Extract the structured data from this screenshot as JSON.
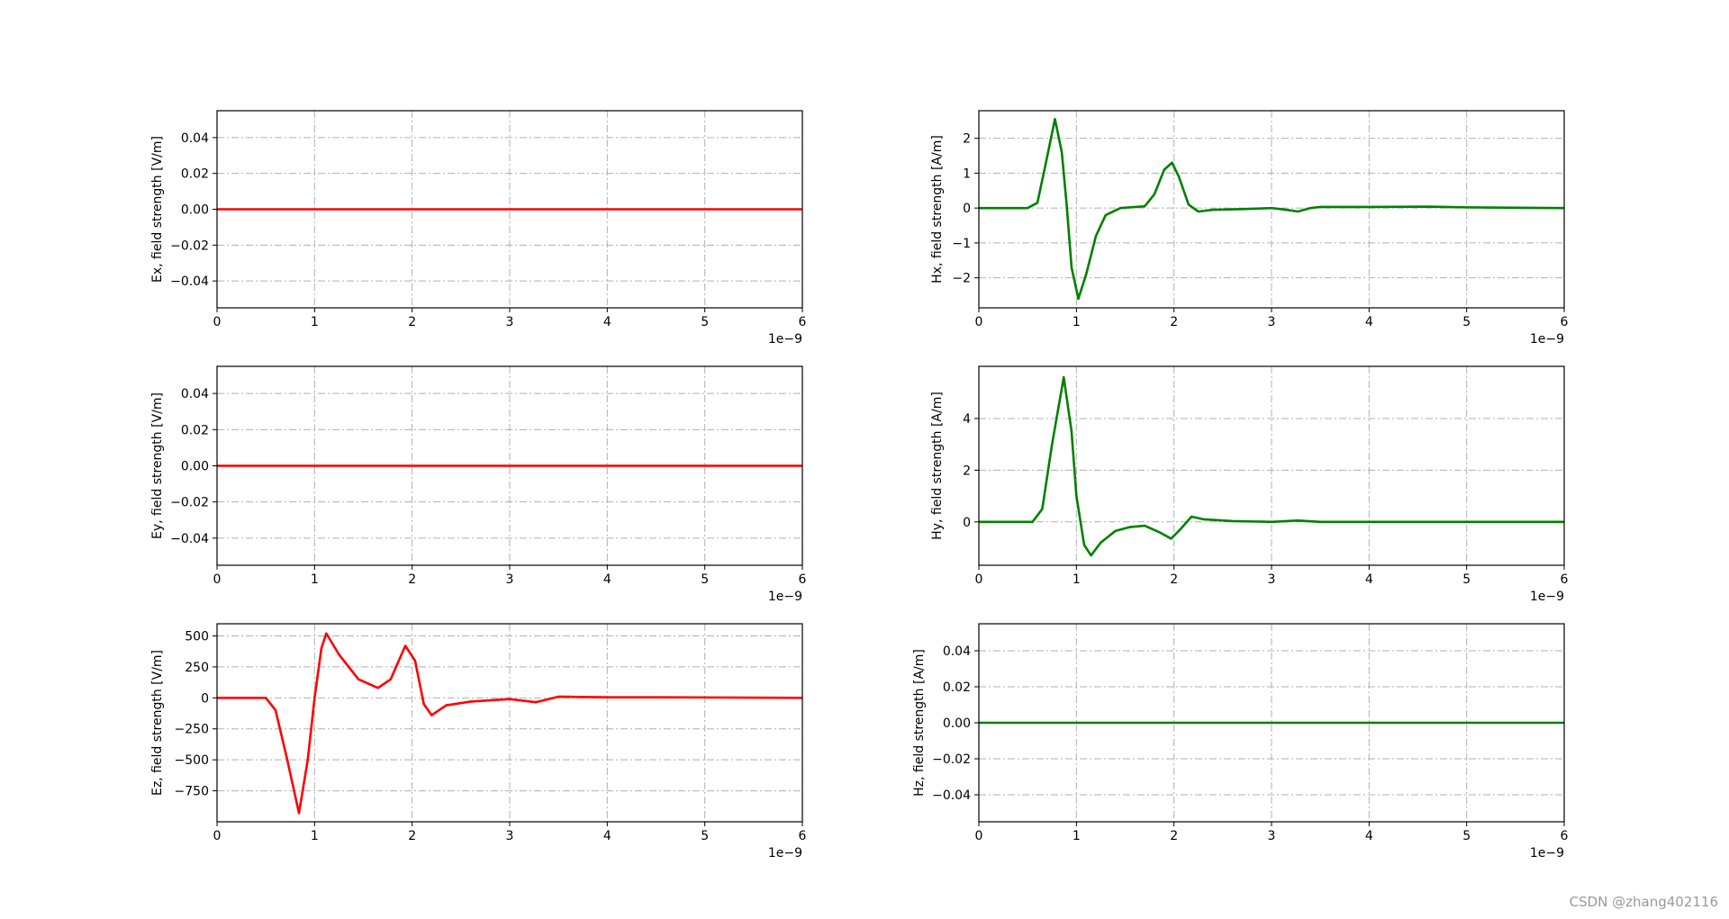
{
  "chart_data": [
    {
      "type": "line",
      "y_label": "Ex, field strength [V/m]",
      "x_offset_label": "1e−9",
      "color": "#ff0000",
      "x": [
        0,
        6
      ],
      "values": [
        0,
        0
      ],
      "xlim": [
        0,
        6
      ],
      "xticks": [
        0,
        1,
        2,
        3,
        4,
        5,
        6
      ],
      "ylim": [
        -0.055,
        0.055
      ],
      "yticks": [
        {
          "value": -0.04,
          "label": "−0.04"
        },
        {
          "value": -0.02,
          "label": "−0.02"
        },
        {
          "value": 0,
          "label": "0.00"
        },
        0.02,
        0.04
      ],
      "grid": true
    },
    {
      "type": "line",
      "y_label": "Hx, field strength [A/m]",
      "x_offset_label": "1e−9",
      "color": "#008000",
      "x": [
        0,
        0.5,
        0.6,
        0.68,
        0.78,
        0.85,
        0.9,
        0.95,
        1.02,
        1.1,
        1.2,
        1.3,
        1.45,
        1.7,
        1.8,
        1.9,
        1.98,
        2.05,
        2.15,
        2.25,
        2.4,
        2.7,
        3.0,
        3.15,
        3.27,
        3.4,
        3.5,
        4.0,
        4.6,
        5.0,
        6.0
      ],
      "values": [
        0,
        0,
        0.15,
        1.2,
        2.55,
        1.6,
        0.1,
        -1.7,
        -2.6,
        -1.9,
        -0.8,
        -0.2,
        0,
        0.05,
        0.4,
        1.1,
        1.3,
        0.9,
        0.1,
        -0.1,
        -0.05,
        -0.03,
        0,
        -0.05,
        -0.1,
        0,
        0.03,
        0.03,
        0.04,
        0.02,
        0
      ],
      "xlim": [
        0,
        6
      ],
      "xticks": [
        0,
        1,
        2,
        3,
        4,
        5,
        6
      ],
      "ylim": [
        -2.86,
        2.79
      ],
      "yticks": [
        {
          "value": -2,
          "label": "−2"
        },
        {
          "value": -1,
          "label": "−1"
        },
        0,
        1,
        2
      ],
      "grid": true
    },
    {
      "type": "line",
      "y_label": "Ey, field strength [V/m]",
      "x_offset_label": "1e−9",
      "color": "#ff0000",
      "x": [
        0,
        6
      ],
      "values": [
        0,
        0
      ],
      "xlim": [
        0,
        6
      ],
      "xticks": [
        0,
        1,
        2,
        3,
        4,
        5,
        6
      ],
      "ylim": [
        -0.055,
        0.055
      ],
      "yticks": [
        {
          "value": -0.04,
          "label": "−0.04"
        },
        {
          "value": -0.02,
          "label": "−0.02"
        },
        {
          "value": 0,
          "label": "0.00"
        },
        0.02,
        0.04
      ],
      "grid": true
    },
    {
      "type": "line",
      "y_label": "Hy, field strength [A/m]",
      "x_offset_label": "1e−9",
      "color": "#008000",
      "x": [
        0,
        0.55,
        0.65,
        0.75,
        0.87,
        0.95,
        1.0,
        1.08,
        1.15,
        1.25,
        1.4,
        1.55,
        1.7,
        1.85,
        1.97,
        2.05,
        2.18,
        2.3,
        2.6,
        3.0,
        3.27,
        3.5,
        4.0,
        6.0
      ],
      "values": [
        0,
        0,
        0.5,
        3.0,
        5.6,
        3.5,
        1.0,
        -0.9,
        -1.3,
        -0.8,
        -0.35,
        -0.2,
        -0.15,
        -0.4,
        -0.65,
        -0.35,
        0.2,
        0.1,
        0.03,
        0,
        0.05,
        0,
        0,
        0
      ],
      "xlim": [
        0,
        6
      ],
      "xticks": [
        0,
        1,
        2,
        3,
        4,
        5,
        6
      ],
      "ylim": [
        -1.68,
        6.02
      ],
      "yticks": [
        0,
        2,
        4
      ],
      "grid": true
    },
    {
      "type": "line",
      "y_label": "Ez, field strength [V/m]",
      "x_offset_label": "1e−9",
      "color": "#ff0000",
      "x": [
        0,
        0.5,
        0.6,
        0.72,
        0.84,
        0.93,
        1.0,
        1.07,
        1.12,
        1.25,
        1.45,
        1.65,
        1.78,
        1.93,
        2.03,
        2.12,
        2.2,
        2.35,
        2.6,
        3.0,
        3.27,
        3.5,
        4.0,
        4.6,
        6.0
      ],
      "values": [
        0,
        0,
        -100,
        -500,
        -930,
        -500,
        0,
        400,
        520,
        350,
        150,
        80,
        150,
        420,
        300,
        -50,
        -140,
        -60,
        -30,
        -10,
        -35,
        10,
        5,
        5,
        0
      ],
      "xlim": [
        0,
        6
      ],
      "xticks": [
        0,
        1,
        2,
        3,
        4,
        5,
        6
      ],
      "ylim": [
        -1000,
        598
      ],
      "yticks": [
        {
          "value": -750,
          "label": "−750"
        },
        {
          "value": -500,
          "label": "−500"
        },
        {
          "value": -250,
          "label": "−250"
        },
        0,
        250,
        500
      ],
      "grid": true
    },
    {
      "type": "line",
      "y_label": "Hz, field strength [A/m]",
      "x_offset_label": "1e−9",
      "color": "#008000",
      "x": [
        0,
        6
      ],
      "values": [
        0,
        0
      ],
      "xlim": [
        0,
        6
      ],
      "xticks": [
        0,
        1,
        2,
        3,
        4,
        5,
        6
      ],
      "ylim": [
        -0.055,
        0.055
      ],
      "yticks": [
        {
          "value": -0.04,
          "label": "−0.04"
        },
        {
          "value": -0.02,
          "label": "−0.02"
        },
        {
          "value": 0,
          "label": "0.00"
        },
        0.02,
        0.04
      ],
      "grid": true
    }
  ],
  "watermark": "CSDN @zhang402116"
}
